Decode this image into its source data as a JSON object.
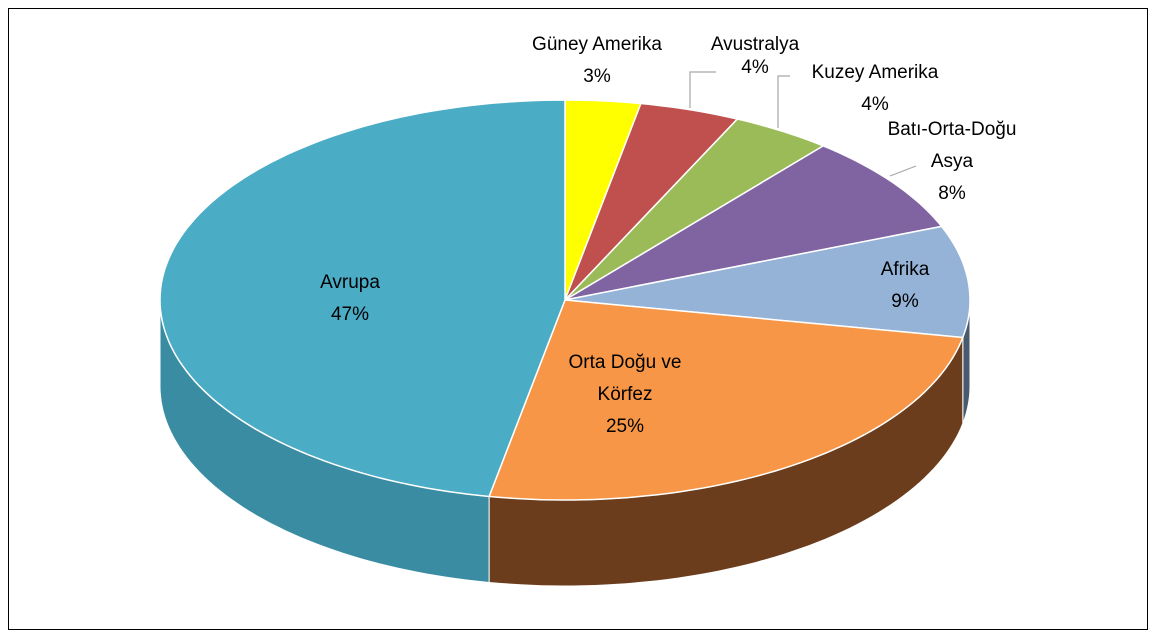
{
  "chart_data": {
    "type": "pie3d",
    "categories": [
      "Güney Amerika",
      "Avustralya",
      "Kuzey Amerika",
      "Batı-Orta-Doğu Asya",
      "Afrika",
      "Orta Doğu ve Körfez",
      "Avrupa"
    ],
    "values": [
      3,
      4,
      4,
      8,
      9,
      25,
      47
    ],
    "value_labels": [
      "3%",
      "4%",
      "4%",
      "8%",
      "9%",
      "25%",
      "47%"
    ],
    "colors": [
      "#ffff00",
      "#c0504d",
      "#9bbb59",
      "#8064a2",
      "#95b3d7",
      "#f79646",
      "#4bacc6"
    ],
    "side_colors": [
      "#b3b300",
      "#8a3a38",
      "#6e8540",
      "#5b4774",
      "#4a5a6e",
      "#6b3d1c",
      "#3a8ca3"
    ]
  }
}
